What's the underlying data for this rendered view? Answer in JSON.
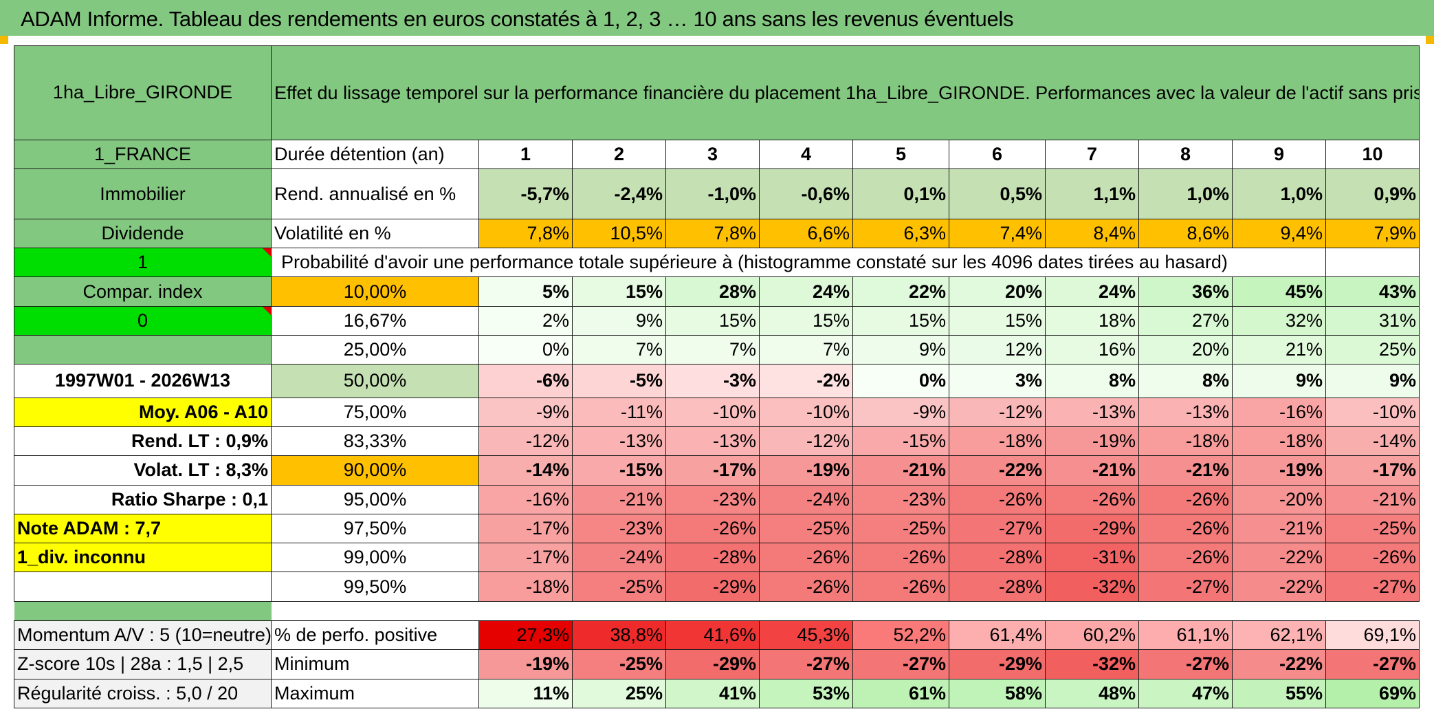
{
  "title": "ADAM Informe. Tableau des rendements en euros constatés à 1, 2, 3 … 10 ans sans les revenus éventuels",
  "left": {
    "fund": "1ha_Libre_GIRONDE",
    "country": "1_FRANCE",
    "category": "Immobilier",
    "income": "Dividende",
    "flag1": "1",
    "compar": "Compar. index",
    "flag2": "0",
    "period": "1997W01 - 2026W13",
    "moy": "Moy. A06 - A10",
    "rend_lt": "Rend. LT :   0,9%",
    "volat_lt": "Volat. LT :   8,3%",
    "sharpe": "Ratio Sharpe :    0,1",
    "note": "Note ADAM : 7,7",
    "div": "1_div. inconnu",
    "momentum": "Momentum A/V : 5 (10=neutre)",
    "zscore": "Z-score 10s | 28a : 1,5 | 2,5",
    "regularite": "Régularité croiss. : 5,0 / 20"
  },
  "header_text": "Effet du lissage temporel sur la performance financière du placement 1ha_Libre_GIRONDE. Performances avec la valeur de l'actif sans prise en compte des revenus.",
  "durations_label": "Durée détention (an)",
  "durations": [
    "1",
    "2",
    "3",
    "4",
    "5",
    "6",
    "7",
    "8",
    "9",
    "10"
  ],
  "rend_label": "Rend. annualisé en %",
  "rend": [
    "-5,7%",
    "-2,4%",
    "-1,0%",
    "-0,6%",
    "0,1%",
    "0,5%",
    "1,1%",
    "1,0%",
    "1,0%",
    "0,9%"
  ],
  "vol_label": "Volatilité en %",
  "vol": [
    "7,8%",
    "10,5%",
    "7,8%",
    "6,6%",
    "6,3%",
    "7,4%",
    "8,4%",
    "8,6%",
    "9,4%",
    "7,9%"
  ],
  "prob_label": "Probabilité d'avoir une performance totale supérieure à (histogramme constaté sur les 4096 dates tirées au hasard)",
  "quantiles": [
    {
      "label": "10,00%",
      "values": [
        "5%",
        "15%",
        "28%",
        "24%",
        "22%",
        "20%",
        "24%",
        "36%",
        "45%",
        "43%"
      ]
    },
    {
      "label": "16,67%",
      "values": [
        "2%",
        "9%",
        "15%",
        "15%",
        "15%",
        "15%",
        "18%",
        "27%",
        "32%",
        "31%"
      ]
    },
    {
      "label": "25,00%",
      "values": [
        "0%",
        "7%",
        "7%",
        "7%",
        "9%",
        "12%",
        "16%",
        "20%",
        "21%",
        "25%"
      ]
    },
    {
      "label": "50,00%",
      "values": [
        "-6%",
        "-5%",
        "-3%",
        "-2%",
        "0%",
        "3%",
        "8%",
        "8%",
        "9%",
        "9%"
      ]
    },
    {
      "label": "75,00%",
      "values": [
        "-9%",
        "-11%",
        "-10%",
        "-10%",
        "-9%",
        "-12%",
        "-13%",
        "-13%",
        "-16%",
        "-10%"
      ]
    },
    {
      "label": "83,33%",
      "values": [
        "-12%",
        "-13%",
        "-13%",
        "-12%",
        "-15%",
        "-18%",
        "-19%",
        "-18%",
        "-18%",
        "-14%"
      ]
    },
    {
      "label": "90,00%",
      "values": [
        "-14%",
        "-15%",
        "-17%",
        "-19%",
        "-21%",
        "-22%",
        "-21%",
        "-21%",
        "-19%",
        "-17%"
      ]
    },
    {
      "label": "95,00%",
      "values": [
        "-16%",
        "-21%",
        "-23%",
        "-24%",
        "-23%",
        "-26%",
        "-26%",
        "-26%",
        "-20%",
        "-21%"
      ]
    },
    {
      "label": "97,50%",
      "values": [
        "-17%",
        "-23%",
        "-26%",
        "-25%",
        "-25%",
        "-27%",
        "-29%",
        "-26%",
        "-21%",
        "-25%"
      ]
    },
    {
      "label": "99,00%",
      "values": [
        "-17%",
        "-24%",
        "-28%",
        "-26%",
        "-26%",
        "-28%",
        "-31%",
        "-26%",
        "-22%",
        "-26%"
      ]
    },
    {
      "label": "99,50%",
      "values": [
        "-18%",
        "-25%",
        "-29%",
        "-26%",
        "-26%",
        "-28%",
        "-32%",
        "-27%",
        "-22%",
        "-27%"
      ]
    }
  ],
  "pos_label": "% de perfo. positive",
  "pos": [
    "27,3%",
    "38,8%",
    "41,6%",
    "45,3%",
    "52,2%",
    "61,4%",
    "60,2%",
    "61,1%",
    "62,1%",
    "69,1%"
  ],
  "min_label": "Minimum",
  "min": [
    "-19%",
    "-25%",
    "-29%",
    "-27%",
    "-27%",
    "-29%",
    "-32%",
    "-27%",
    "-22%",
    "-27%"
  ],
  "max_label": "Maximum",
  "max": [
    "11%",
    "25%",
    "41%",
    "53%",
    "61%",
    "58%",
    "48%",
    "47%",
    "55%",
    "69%"
  ],
  "colors": {
    "header_green": "#83c880",
    "bright_green": "#00dd00",
    "yellow": "#ffff00",
    "orange": "#ffc000",
    "light_green": "#c5e0b3",
    "red_text": "#e00000"
  }
}
